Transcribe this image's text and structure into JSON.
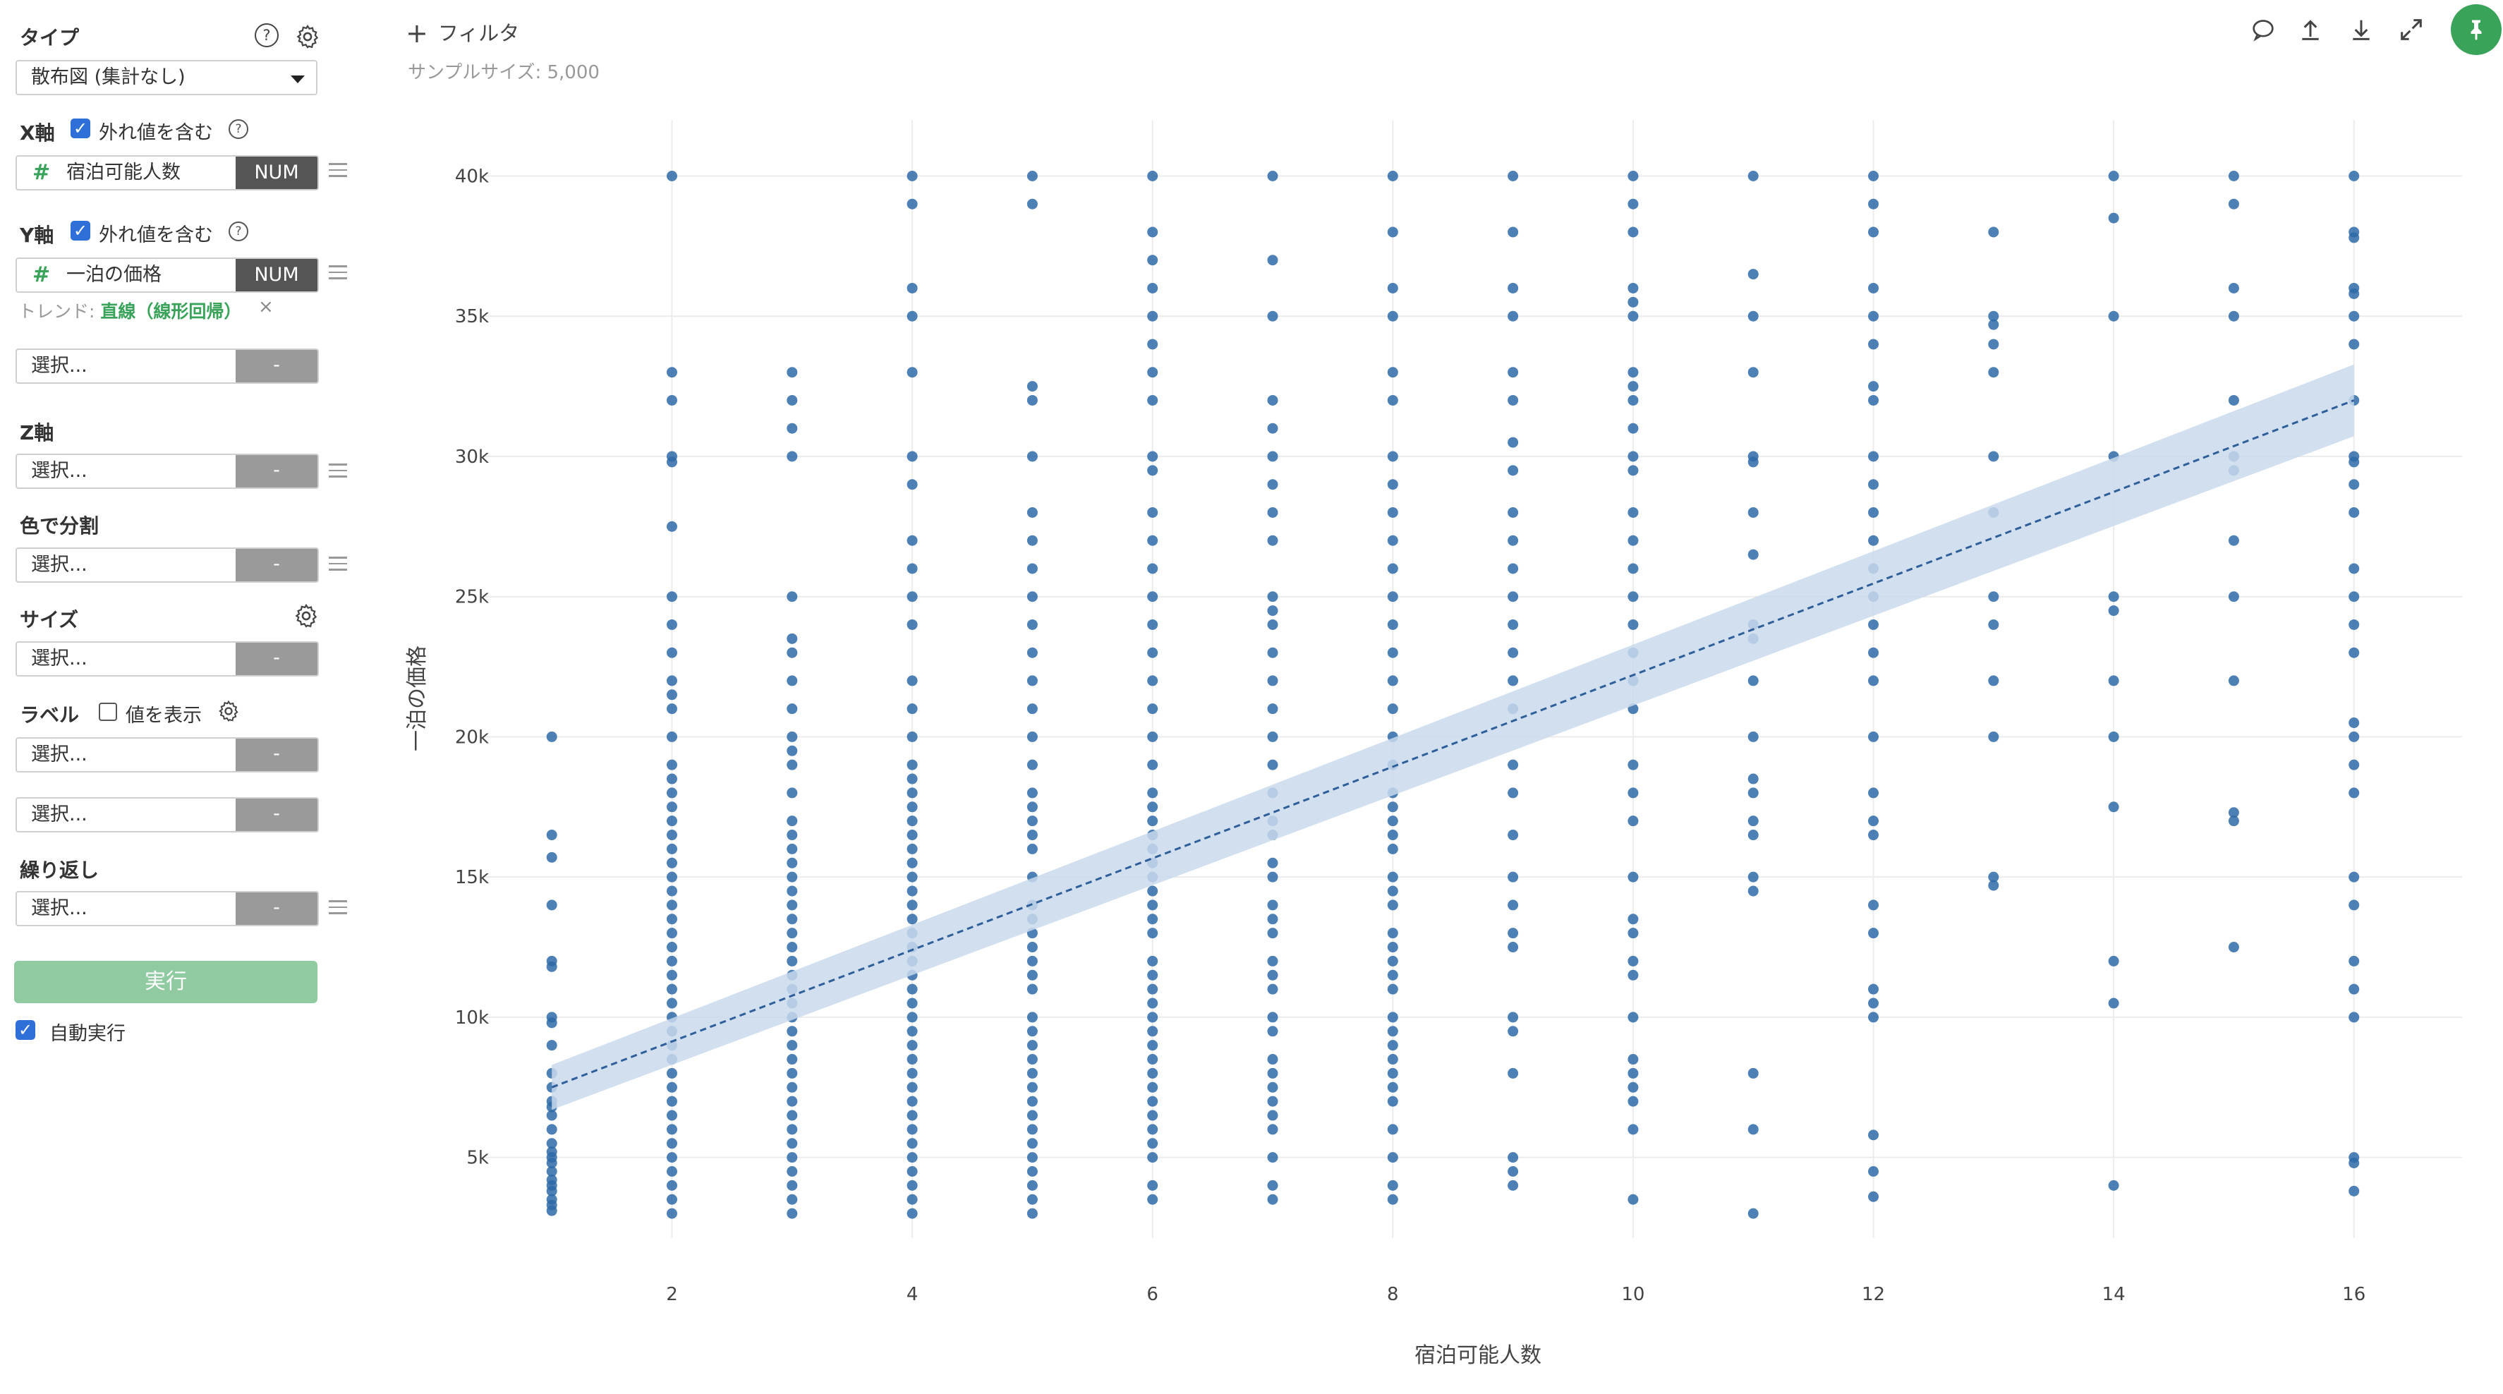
{
  "sidebar": {
    "type_label": "タイプ",
    "type_value": "散布図 (集計なし)",
    "x_axis": {
      "label": "X軸",
      "outlier_label": "外れ値を含む",
      "field": "宿泊可能人数",
      "badge": "NUM"
    },
    "y_axis": {
      "label": "Y軸",
      "outlier_label": "外れ値を含む",
      "field": "一泊の価格",
      "badge": "NUM",
      "trend_prefix": "トレンド: ",
      "trend_value": "直線（線形回帰）",
      "trend_remove": "×"
    },
    "placeholder": "選択...",
    "dash": "-",
    "z_label": "Z軸",
    "color_label": "色で分割",
    "size_label": "サイズ",
    "label_label": "ラベル",
    "show_value_label": "値を表示",
    "repeat_label": "繰り返し",
    "run_label": "実行",
    "auto_run_label": "自動実行",
    "help_glyph": "?"
  },
  "toolbar": {
    "filter_plus": "+",
    "filter_label": "フィルタ",
    "sample_size": "サンプルサイズ: 5,000"
  },
  "colors": {
    "accent_green": "#3aa35a",
    "point": "#2e6aa8",
    "trend_band": "#c9d9ec"
  },
  "chart_data": {
    "type": "scatter",
    "xlabel": "宿泊可能人数",
    "ylabel": "一泊の価格",
    "xlim": [
      0.4,
      16.9
    ],
    "ylim": [
      2500,
      42000
    ],
    "x_ticks": [
      2,
      4,
      6,
      8,
      10,
      12,
      14,
      16
    ],
    "x_tick_labels": [
      "2",
      "4",
      "6",
      "8",
      "10",
      "12",
      "14",
      "16"
    ],
    "y_ticks": [
      5000,
      10000,
      15000,
      20000,
      25000,
      30000,
      35000,
      40000
    ],
    "y_tick_labels": [
      "5k",
      "10k",
      "15k",
      "20k",
      "25k",
      "30k",
      "35k",
      "40k"
    ],
    "grid": true,
    "trend": {
      "type": "linear",
      "x": [
        1,
        16
      ],
      "y": [
        7500,
        32000
      ],
      "band": 800
    },
    "points": [
      {
        "x": 1,
        "y": [
          20000,
          16500,
          15700,
          14000,
          12000,
          11800,
          10000,
          9800,
          9000,
          8000,
          7500,
          7000,
          6800,
          6500,
          6000,
          5500,
          5200,
          5000,
          4800,
          4500,
          4200,
          4000,
          3800,
          3500,
          3300,
          3100
        ]
      },
      {
        "x": 2,
        "y": [
          40000,
          33000,
          32000,
          30000,
          29800,
          27500,
          25000,
          24000,
          23000,
          22000,
          21500,
          21000,
          20000,
          19000,
          18500,
          18000,
          17500,
          17000,
          16500,
          16000,
          15500,
          15000,
          14500,
          14000,
          13500,
          13000,
          12500,
          12000,
          11500,
          11000,
          10500,
          10000,
          9500,
          9000,
          8500,
          8000,
          7500,
          7000,
          6500,
          6000,
          5500,
          5000,
          4500,
          4000,
          3500,
          3000
        ]
      },
      {
        "x": 3,
        "y": [
          33000,
          32000,
          31000,
          30000,
          25000,
          23500,
          23000,
          22000,
          21000,
          20000,
          19500,
          19000,
          18000,
          17000,
          16500,
          16000,
          15500,
          15000,
          14500,
          14000,
          13500,
          13000,
          12500,
          12000,
          11500,
          11000,
          10500,
          10000,
          9500,
          9000,
          8500,
          8000,
          7500,
          7000,
          6500,
          6000,
          5500,
          5000,
          4500,
          4000,
          3500,
          3000
        ]
      },
      {
        "x": 4,
        "y": [
          40000,
          39000,
          36000,
          35000,
          33000,
          30000,
          29000,
          27000,
          26000,
          25000,
          24000,
          22000,
          21000,
          20000,
          19000,
          18500,
          18000,
          17500,
          17000,
          16500,
          16000,
          15500,
          15000,
          14500,
          14000,
          13500,
          13000,
          12500,
          12000,
          11500,
          11000,
          10500,
          10000,
          9500,
          9000,
          8500,
          8000,
          7500,
          7000,
          6500,
          6000,
          5500,
          5000,
          4500,
          4000,
          3500,
          3000
        ]
      },
      {
        "x": 5,
        "y": [
          40000,
          39000,
          32500,
          32000,
          30000,
          28000,
          27000,
          26000,
          25000,
          24000,
          23000,
          22000,
          21000,
          20000,
          19000,
          18000,
          17500,
          17000,
          16500,
          16000,
          15000,
          14000,
          13500,
          13000,
          12500,
          12000,
          11500,
          11000,
          10000,
          9500,
          9000,
          8500,
          8000,
          7500,
          7000,
          6500,
          6000,
          5500,
          5000,
          4500,
          4000,
          3500,
          3000
        ]
      },
      {
        "x": 6,
        "y": [
          40000,
          38000,
          37000,
          36000,
          35000,
          34000,
          33000,
          32000,
          30000,
          29500,
          28000,
          27000,
          26000,
          25000,
          24000,
          23000,
          22000,
          21000,
          20000,
          19000,
          18000,
          17500,
          17000,
          16500,
          16000,
          15500,
          15000,
          14500,
          14000,
          13500,
          13000,
          12000,
          11500,
          11000,
          10500,
          10000,
          9500,
          9000,
          8500,
          8000,
          7500,
          7000,
          6500,
          6000,
          5500,
          5000,
          4000,
          3500
        ]
      },
      {
        "x": 7,
        "y": [
          40000,
          37000,
          35000,
          32000,
          31000,
          30000,
          29000,
          28000,
          27000,
          25000,
          24500,
          24000,
          23000,
          22000,
          21000,
          20000,
          19000,
          18000,
          17000,
          16500,
          15500,
          15000,
          14000,
          13500,
          13000,
          12000,
          11500,
          11000,
          10000,
          9500,
          8500,
          8000,
          7500,
          7000,
          6500,
          6000,
          5000,
          4000,
          3500
        ]
      },
      {
        "x": 8,
        "y": [
          40000,
          38000,
          36000,
          35000,
          33000,
          32000,
          30000,
          29000,
          28000,
          27000,
          26000,
          25000,
          24000,
          23000,
          22000,
          21000,
          20000,
          19000,
          18000,
          17500,
          17000,
          16500,
          16000,
          15000,
          14500,
          14000,
          13000,
          12500,
          12000,
          11500,
          11000,
          10000,
          9500,
          9000,
          8500,
          8000,
          7500,
          7000,
          6000,
          5000,
          4000,
          3500
        ]
      },
      {
        "x": 9,
        "y": [
          40000,
          38000,
          36000,
          35000,
          33000,
          32000,
          30500,
          29500,
          28000,
          27000,
          26000,
          25000,
          24000,
          23000,
          22000,
          21000,
          19000,
          18000,
          16500,
          15000,
          14000,
          13000,
          12500,
          10000,
          9500,
          8000,
          5000,
          4500,
          4000
        ]
      },
      {
        "x": 10,
        "y": [
          40000,
          39000,
          38000,
          36000,
          35500,
          35000,
          33000,
          32500,
          32000,
          31000,
          30000,
          29500,
          28000,
          27000,
          26000,
          25000,
          24000,
          23000,
          22000,
          21000,
          19000,
          18000,
          17000,
          15000,
          13500,
          13000,
          12000,
          11500,
          10000,
          8500,
          8000,
          7500,
          7000,
          6000,
          3500
        ]
      },
      {
        "x": 11,
        "y": [
          40000,
          36500,
          35000,
          33000,
          30000,
          29800,
          28000,
          26500,
          24000,
          23500,
          22000,
          20000,
          18500,
          18000,
          17000,
          16500,
          15000,
          14500,
          8000,
          6000,
          3000
        ]
      },
      {
        "x": 12,
        "y": [
          40000,
          39000,
          38000,
          36000,
          35000,
          34000,
          32500,
          32000,
          30000,
          29000,
          28000,
          27000,
          26000,
          25000,
          24000,
          23000,
          22000,
          20000,
          18000,
          17000,
          16500,
          14000,
          13000,
          11000,
          10500,
          10000,
          5800,
          4500,
          3600
        ]
      },
      {
        "x": 13,
        "y": [
          38000,
          35000,
          34700,
          34000,
          33000,
          30000,
          28000,
          25000,
          24000,
          22000,
          20000,
          15000,
          14700
        ]
      },
      {
        "x": 14,
        "y": [
          40000,
          38500,
          35000,
          30000,
          25000,
          24500,
          22000,
          20000,
          17500,
          12000,
          10500,
          4000
        ]
      },
      {
        "x": 15,
        "y": [
          40000,
          39000,
          36000,
          35000,
          32000,
          30000,
          29500,
          27000,
          25000,
          22000,
          17300,
          17000,
          12500
        ]
      },
      {
        "x": 16,
        "y": [
          40000,
          38000,
          37800,
          36000,
          35800,
          35000,
          34000,
          32000,
          30000,
          29800,
          29000,
          28000,
          26000,
          25000,
          24000,
          23000,
          20500,
          20000,
          19000,
          18000,
          15000,
          14000,
          12000,
          11000,
          10000,
          5000,
          4800,
          3800
        ]
      }
    ]
  }
}
